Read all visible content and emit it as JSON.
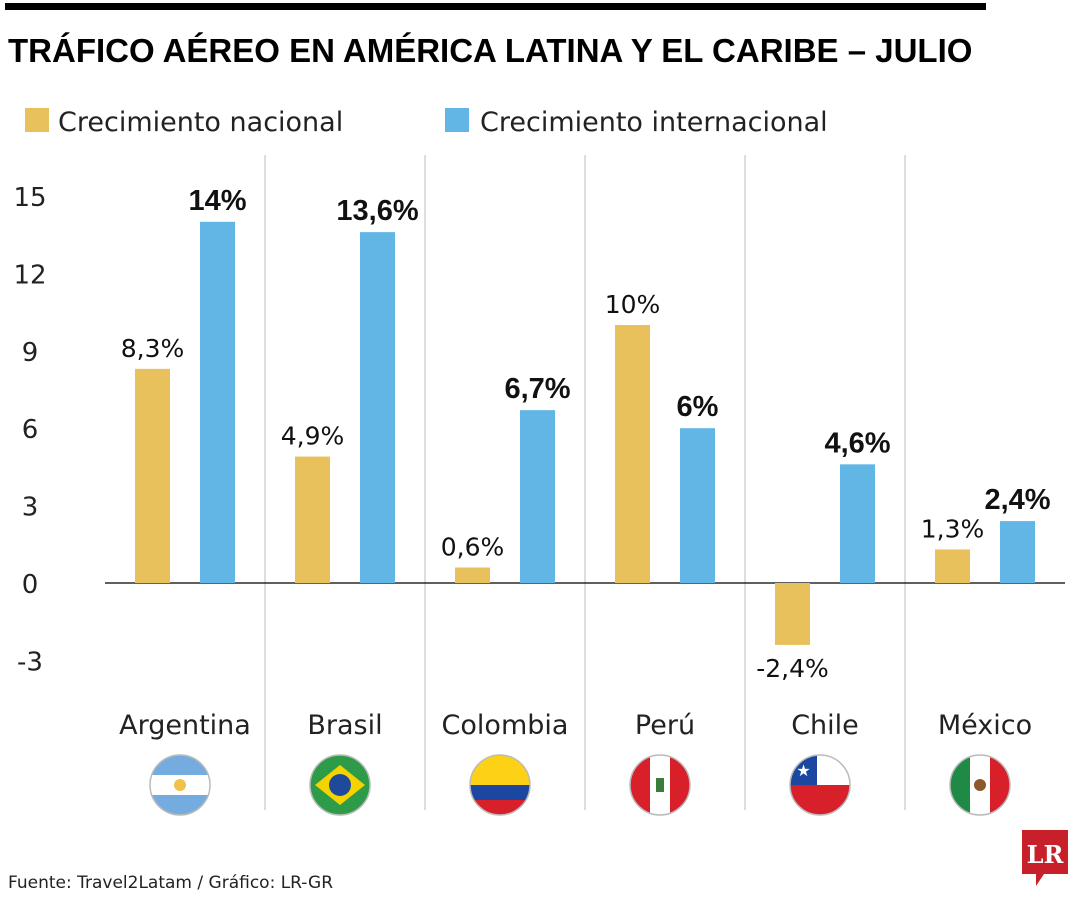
{
  "chart_data": {
    "type": "bar",
    "title": "TRÁFICO AÉREO EN AMÉRICA LATINA Y EL CARIBE – JULIO",
    "categories": [
      "Argentina",
      "Brasil",
      "Colombia",
      "Perú",
      "Chile",
      "México"
    ],
    "series": [
      {
        "name": "Crecimiento nacional",
        "color": "#E8C05C",
        "values": [
          8.3,
          4.9,
          0.6,
          10,
          -2.4,
          1.3
        ],
        "labels": [
          "8,3%",
          "4,9%",
          "0,6%",
          "10%",
          "-2,4%",
          "1,3%"
        ]
      },
      {
        "name": "Crecimiento internacional",
        "color": "#62B6E6",
        "values": [
          14,
          13.6,
          6.7,
          6,
          4.6,
          2.4
        ],
        "labels": [
          "14%",
          "13,6%",
          "6,7%",
          "6%",
          "4,6%",
          "2,4%"
        ]
      }
    ],
    "yticks": [
      "15",
      "12",
      "9",
      "6",
      "3",
      "0",
      "-3"
    ],
    "ylim": [
      -3,
      15
    ],
    "grid": false,
    "legend": "top-left",
    "flags": [
      "argentina-flag",
      "brazil-flag",
      "colombia-flag",
      "peru-flag",
      "chile-flag",
      "mexico-flag"
    ]
  },
  "footer": {
    "source": "Fuente: Travel2Latam / Gráfico: LR-GR"
  },
  "logo": {
    "text": "LR",
    "color": "#C8202A"
  }
}
